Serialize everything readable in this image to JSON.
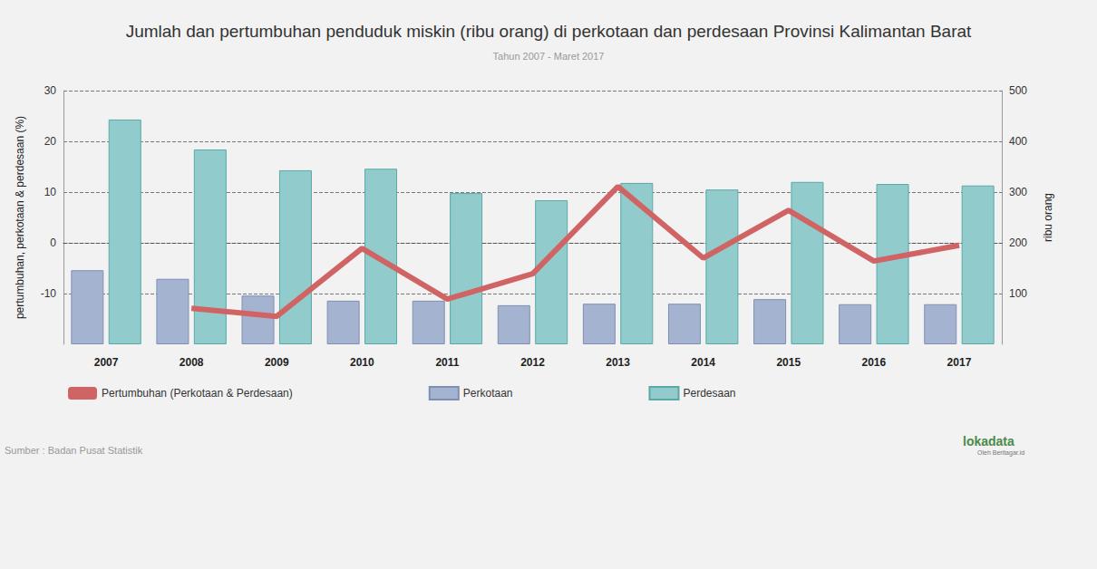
{
  "chart_data": {
    "type": "bar",
    "title": "Jumlah dan pertumbuhan penduduk miskin (ribu orang) di perkotaan dan perdesaan Provinsi Kalimantan Barat",
    "subtitle": "Tahun 2007 - Maret 2017",
    "ylabel": "pertumbuhan, perkotaan & perdesaan (%)",
    "y2label": "ribu orang",
    "source": "Sumber : Badan Pusat Statistik",
    "logo": "lokadata",
    "logo_subtitle": "Oleh Beritagar.id",
    "categories": [
      "2007",
      "2008",
      "2009",
      "2010",
      "2011",
      "2012",
      "2013",
      "2014",
      "2015",
      "2016",
      "2017"
    ],
    "series": [
      {
        "name": "Pertumbuhan (Perkotaan & Perdesaan)",
        "type": "line",
        "color": "#d06464",
        "values": [
          null,
          -12.9,
          -14.5,
          -1.1,
          -11.1,
          -6.1,
          11.1,
          -3.0,
          6.4,
          -3.6,
          -0.5
        ]
      },
      {
        "name": "Perkotaan",
        "type": "bar",
        "axis": "y2",
        "color": "#a4b4d0",
        "values": [
          146,
          129,
          96,
          86,
          86,
          77,
          80,
          80,
          89,
          79,
          79
        ]
      },
      {
        "name": "Perdesaan",
        "type": "bar",
        "axis": "y2",
        "color": "#92cbcb",
        "values": [
          443,
          384,
          343,
          346,
          298,
          284,
          318,
          305,
          320,
          316,
          313
        ]
      }
    ],
    "ylim": [
      -20,
      30
    ],
    "yticks": [
      -10,
      0,
      10,
      20,
      30
    ],
    "y2lim": [
      0,
      500
    ],
    "y2ticks": [
      100,
      200,
      300,
      400,
      500
    ],
    "grid": true,
    "legend": "bottom-left"
  }
}
